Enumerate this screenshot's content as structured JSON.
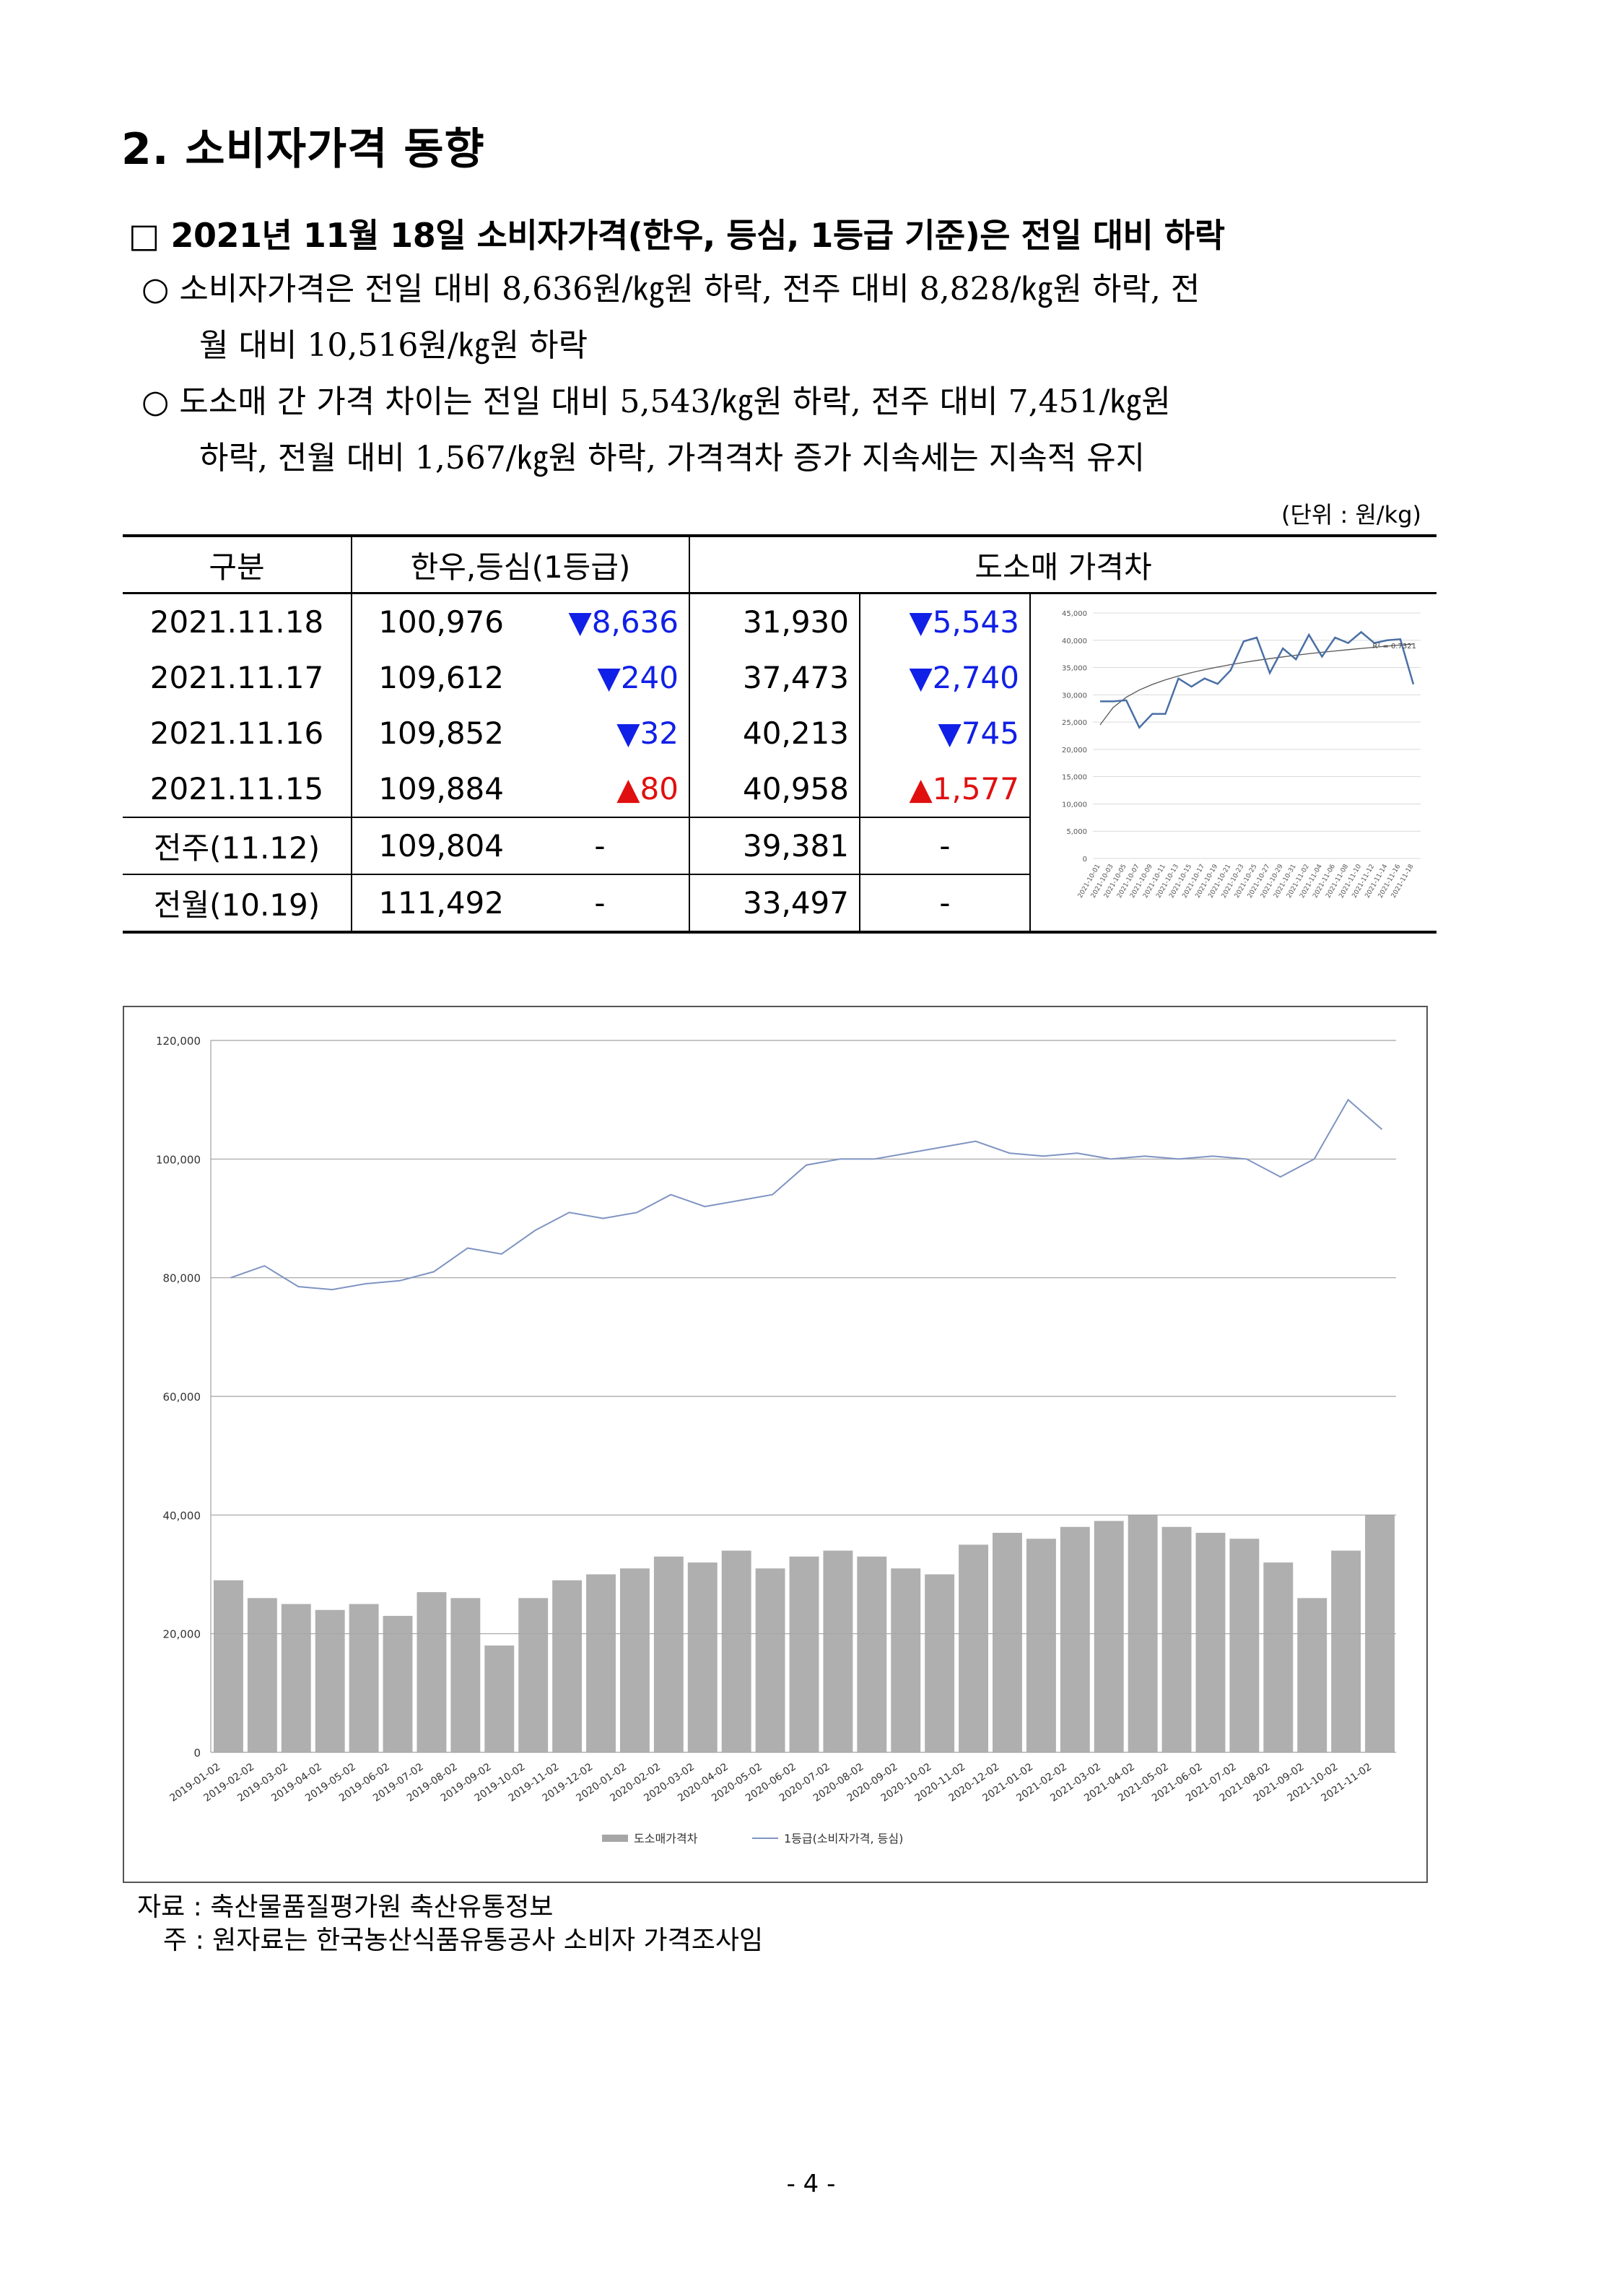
{
  "section_title": "2. 소비자가격 동향",
  "headline": "□ 2021년 11월 18일 소비자가격(한우, 등심, 1등급 기준)은 전일 대비 하락",
  "bullets": [
    {
      "lines": [
        "○  소비자가격은  전일  대비  8,636원/㎏원  하락,  전주  대비  8,828/㎏원  하락,  전",
        "월  대비  10,516원/㎏원  하락"
      ]
    },
    {
      "lines": [
        "○  도소매  간  가격  차이는  전일  대비  5,543/㎏원  하락,  전주  대비  7,451/㎏원",
        "하락,  전월  대비  1,567/㎏원  하락,  가격격차  증가  지속세는  지속적  유지"
      ]
    }
  ],
  "unit_note": "(단위 : 원/kg)",
  "table": {
    "headers": [
      "구분",
      "한우,등심(1등급)",
      "도소매 가격차"
    ],
    "rows": [
      {
        "date": "2021.11.18",
        "price": "100,976",
        "price_change": "▼8,636",
        "gap": "31,930",
        "gap_change": "▼5,543"
      },
      {
        "date": "2021.11.17",
        "price": "109,612",
        "price_change": "▼240",
        "gap": "37,473",
        "gap_change": "▼2,740"
      },
      {
        "date": "2021.11.16",
        "price": "109,852",
        "price_change": "▼32",
        "gap": "40,213",
        "gap_change": "▼745"
      },
      {
        "date": "2021.11.15",
        "price": "109,884",
        "price_change": "▲80",
        "gap": "40,958",
        "gap_change": "▲1,577"
      },
      {
        "date": "전주(11.12)",
        "price": "109,804",
        "price_change": "-",
        "gap": "39,381",
        "gap_change": "-"
      },
      {
        "date": "전월(10.19)",
        "price": "111,492",
        "price_change": "-",
        "gap": "33,497",
        "gap_change": "-"
      }
    ]
  },
  "colors": {
    "down": "#1020e6",
    "up": "#e01010",
    "line": "#4a6fa5",
    "bar": "#a6a6a6"
  },
  "chart_data": [
    {
      "type": "line",
      "title": "",
      "ylim": [
        0,
        45000
      ],
      "y_ticks": [
        "0",
        "5,000",
        "10,000",
        "15,000",
        "20,000",
        "25,000",
        "30,000",
        "35,000",
        "40,000",
        "45,000"
      ],
      "x": [
        "2021-10-01",
        "2021-10-03",
        "2021-10-05",
        "2021-10-07",
        "2021-10-09",
        "2021-10-11",
        "2021-10-13",
        "2021-10-15",
        "2021-10-17",
        "2021-10-19",
        "2021-10-21",
        "2021-10-23",
        "2021-10-25",
        "2021-10-27",
        "2021-10-29",
        "2021-10-31",
        "2021-11-02",
        "2021-11-04",
        "2021-11-06",
        "2021-11-08",
        "2021-11-10",
        "2021-11-12",
        "2021-11-14",
        "2021-11-16",
        "2021-11-18"
      ],
      "series": [
        {
          "values": [
            28800,
            28800,
            29000,
            24000,
            26500,
            26500,
            33000,
            31500,
            33000,
            32000,
            34500,
            39800,
            40500,
            34000,
            38500,
            36500,
            41000,
            37000,
            40500,
            39500,
            41500,
            39500,
            40000,
            40200,
            31930
          ]
        }
      ],
      "trendline_label": "R² = 0.7321"
    },
    {
      "type": "bar",
      "title": "",
      "ylim": [
        0,
        120000
      ],
      "y_ticks": [
        "0",
        "20,000",
        "40,000",
        "60,000",
        "80,000",
        "100,000",
        "120,000"
      ],
      "categories": [
        "2019-01-02",
        "2019-02-02",
        "2019-03-02",
        "2019-04-02",
        "2019-05-02",
        "2019-06-02",
        "2019-07-02",
        "2019-08-02",
        "2019-09-02",
        "2019-10-02",
        "2019-11-02",
        "2019-12-02",
        "2020-01-02",
        "2020-02-02",
        "2020-03-02",
        "2020-04-02",
        "2020-05-02",
        "2020-06-02",
        "2020-07-02",
        "2020-08-02",
        "2020-09-02",
        "2020-10-02",
        "2020-11-02",
        "2020-12-02",
        "2021-01-02",
        "2021-02-02",
        "2021-03-02",
        "2021-04-02",
        "2021-05-02",
        "2021-06-02",
        "2021-07-02",
        "2021-08-02",
        "2021-09-02",
        "2021-10-02",
        "2021-11-02"
      ],
      "series": [
        {
          "name": "도소매가격차",
          "type": "bar",
          "values": [
            29000,
            26000,
            25000,
            24000,
            25000,
            23000,
            27000,
            26000,
            18000,
            26000,
            29000,
            30000,
            31000,
            33000,
            32000,
            34000,
            31000,
            33000,
            34000,
            33000,
            31000,
            30000,
            35000,
            37000,
            36000,
            38000,
            39000,
            40000,
            38000,
            37000,
            36000,
            32000,
            26000,
            34000,
            40000
          ]
        },
        {
          "name": "1등급(소비자가격, 등심)",
          "type": "line",
          "values": [
            80000,
            82000,
            78500,
            78000,
            79000,
            79500,
            81000,
            85000,
            84000,
            88000,
            91000,
            90000,
            91000,
            94000,
            92000,
            93000,
            94000,
            99000,
            100000,
            100000,
            101000,
            102000,
            103000,
            101000,
            100500,
            101000,
            100000,
            100500,
            100000,
            100500,
            100000,
            97000,
            100000,
            110000,
            105000
          ]
        }
      ]
    }
  ],
  "source": "자료 : 축산물품질평가원 축산유통정보",
  "note": "주 : 원자료는 한국농산식품유통공사 소비자 가격조사임",
  "page_number": "- 4 -"
}
